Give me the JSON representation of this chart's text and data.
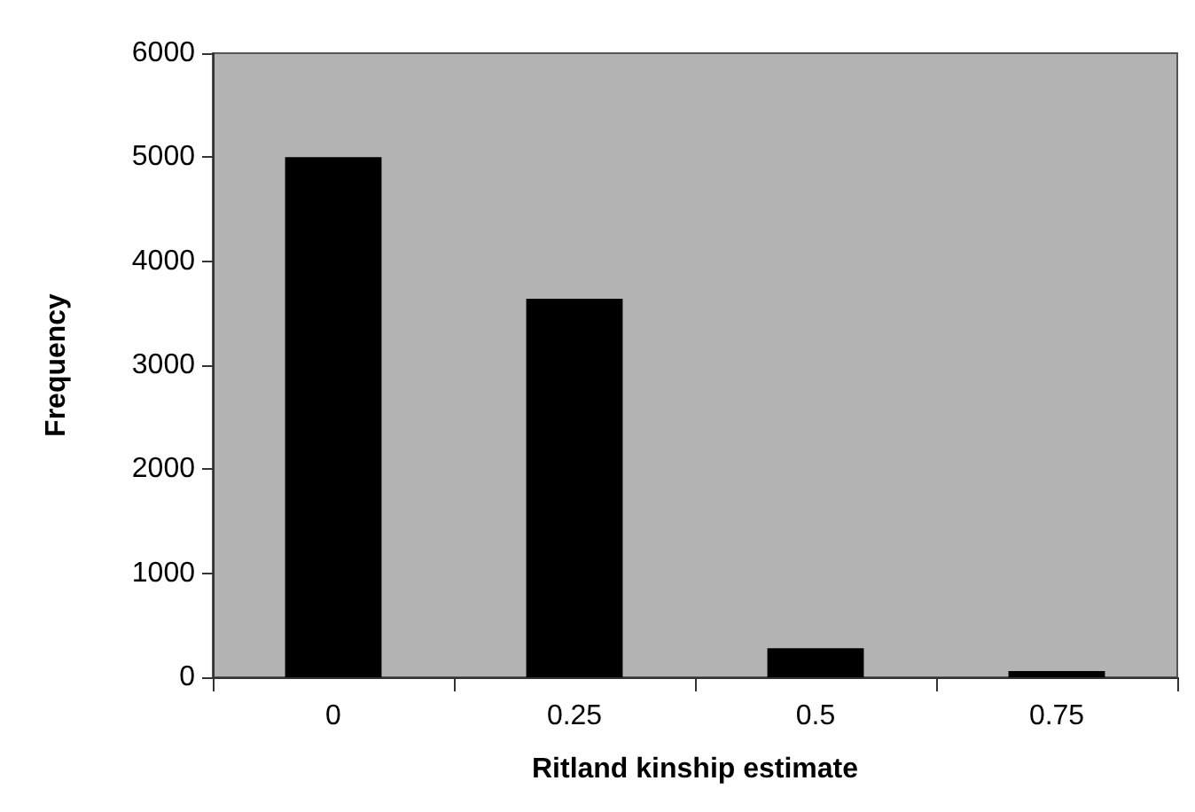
{
  "chart_data": {
    "type": "bar",
    "xlabel": "Ritland kinship estimate",
    "ylabel": "Frequency",
    "categories": [
      "0",
      "0.25",
      "0.5",
      "0.75"
    ],
    "values": [
      5000,
      3640,
      280,
      60
    ],
    "color": "#000000",
    "ylim": [
      0,
      6000
    ],
    "yticks": [
      0,
      1000,
      2000,
      3000,
      4000,
      5000,
      6000
    ],
    "grid": false
  }
}
